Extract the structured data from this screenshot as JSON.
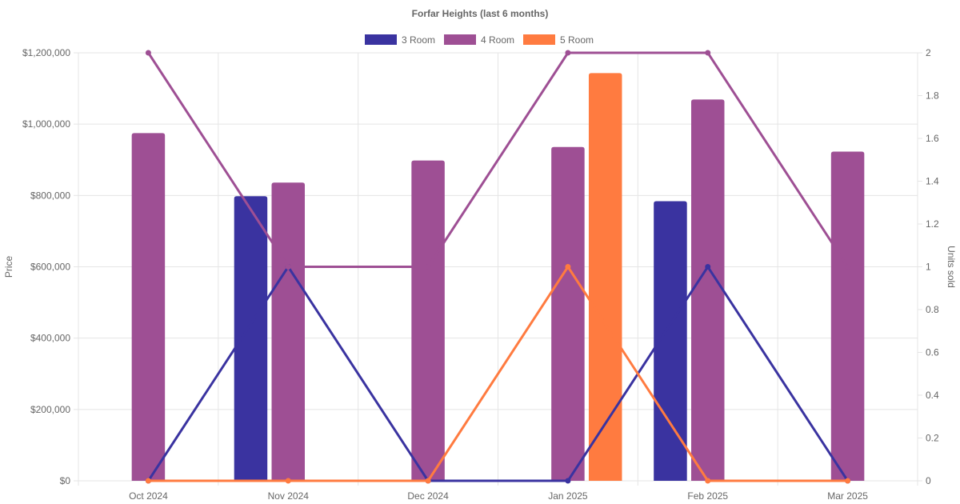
{
  "chart_data": {
    "type": "bar",
    "title": "Forfar Heights (last 6 months)",
    "categories": [
      "Oct 2024",
      "Nov 2024",
      "Dec 2024",
      "Jan 2025",
      "Feb 2025",
      "Mar 2025"
    ],
    "y_left": {
      "label": "Price",
      "range": [
        0,
        1200000
      ],
      "ticks": [
        "$0",
        "$200,000",
        "$400,000",
        "$600,000",
        "$800,000",
        "$1,000,000",
        "$1,200,000"
      ]
    },
    "y_right": {
      "label": "Units sold",
      "range": [
        0,
        2
      ],
      "ticks": [
        "0",
        "0.2",
        "0.4",
        "0.6",
        "0.8",
        "1",
        "1.2",
        "1.4",
        "1.6",
        "1.8",
        "2"
      ]
    },
    "grid": true,
    "legend_position": "top-center",
    "series": [
      {
        "name": "3 Room",
        "color": "#3a33a0",
        "price": [
          null,
          798000,
          null,
          null,
          784000,
          null
        ],
        "units": [
          0,
          1,
          0,
          0,
          1,
          0
        ]
      },
      {
        "name": "4 Room",
        "color": "#9e4f94",
        "price": [
          975000,
          836000,
          898000,
          936000,
          1069000,
          923000
        ],
        "units": [
          2,
          1,
          1,
          2,
          2,
          1
        ]
      },
      {
        "name": "5 Room",
        "color": "#ff7b40",
        "price": [
          null,
          null,
          null,
          1143000,
          null,
          null
        ],
        "units": [
          0,
          0,
          0,
          1,
          0,
          0
        ]
      }
    ]
  }
}
